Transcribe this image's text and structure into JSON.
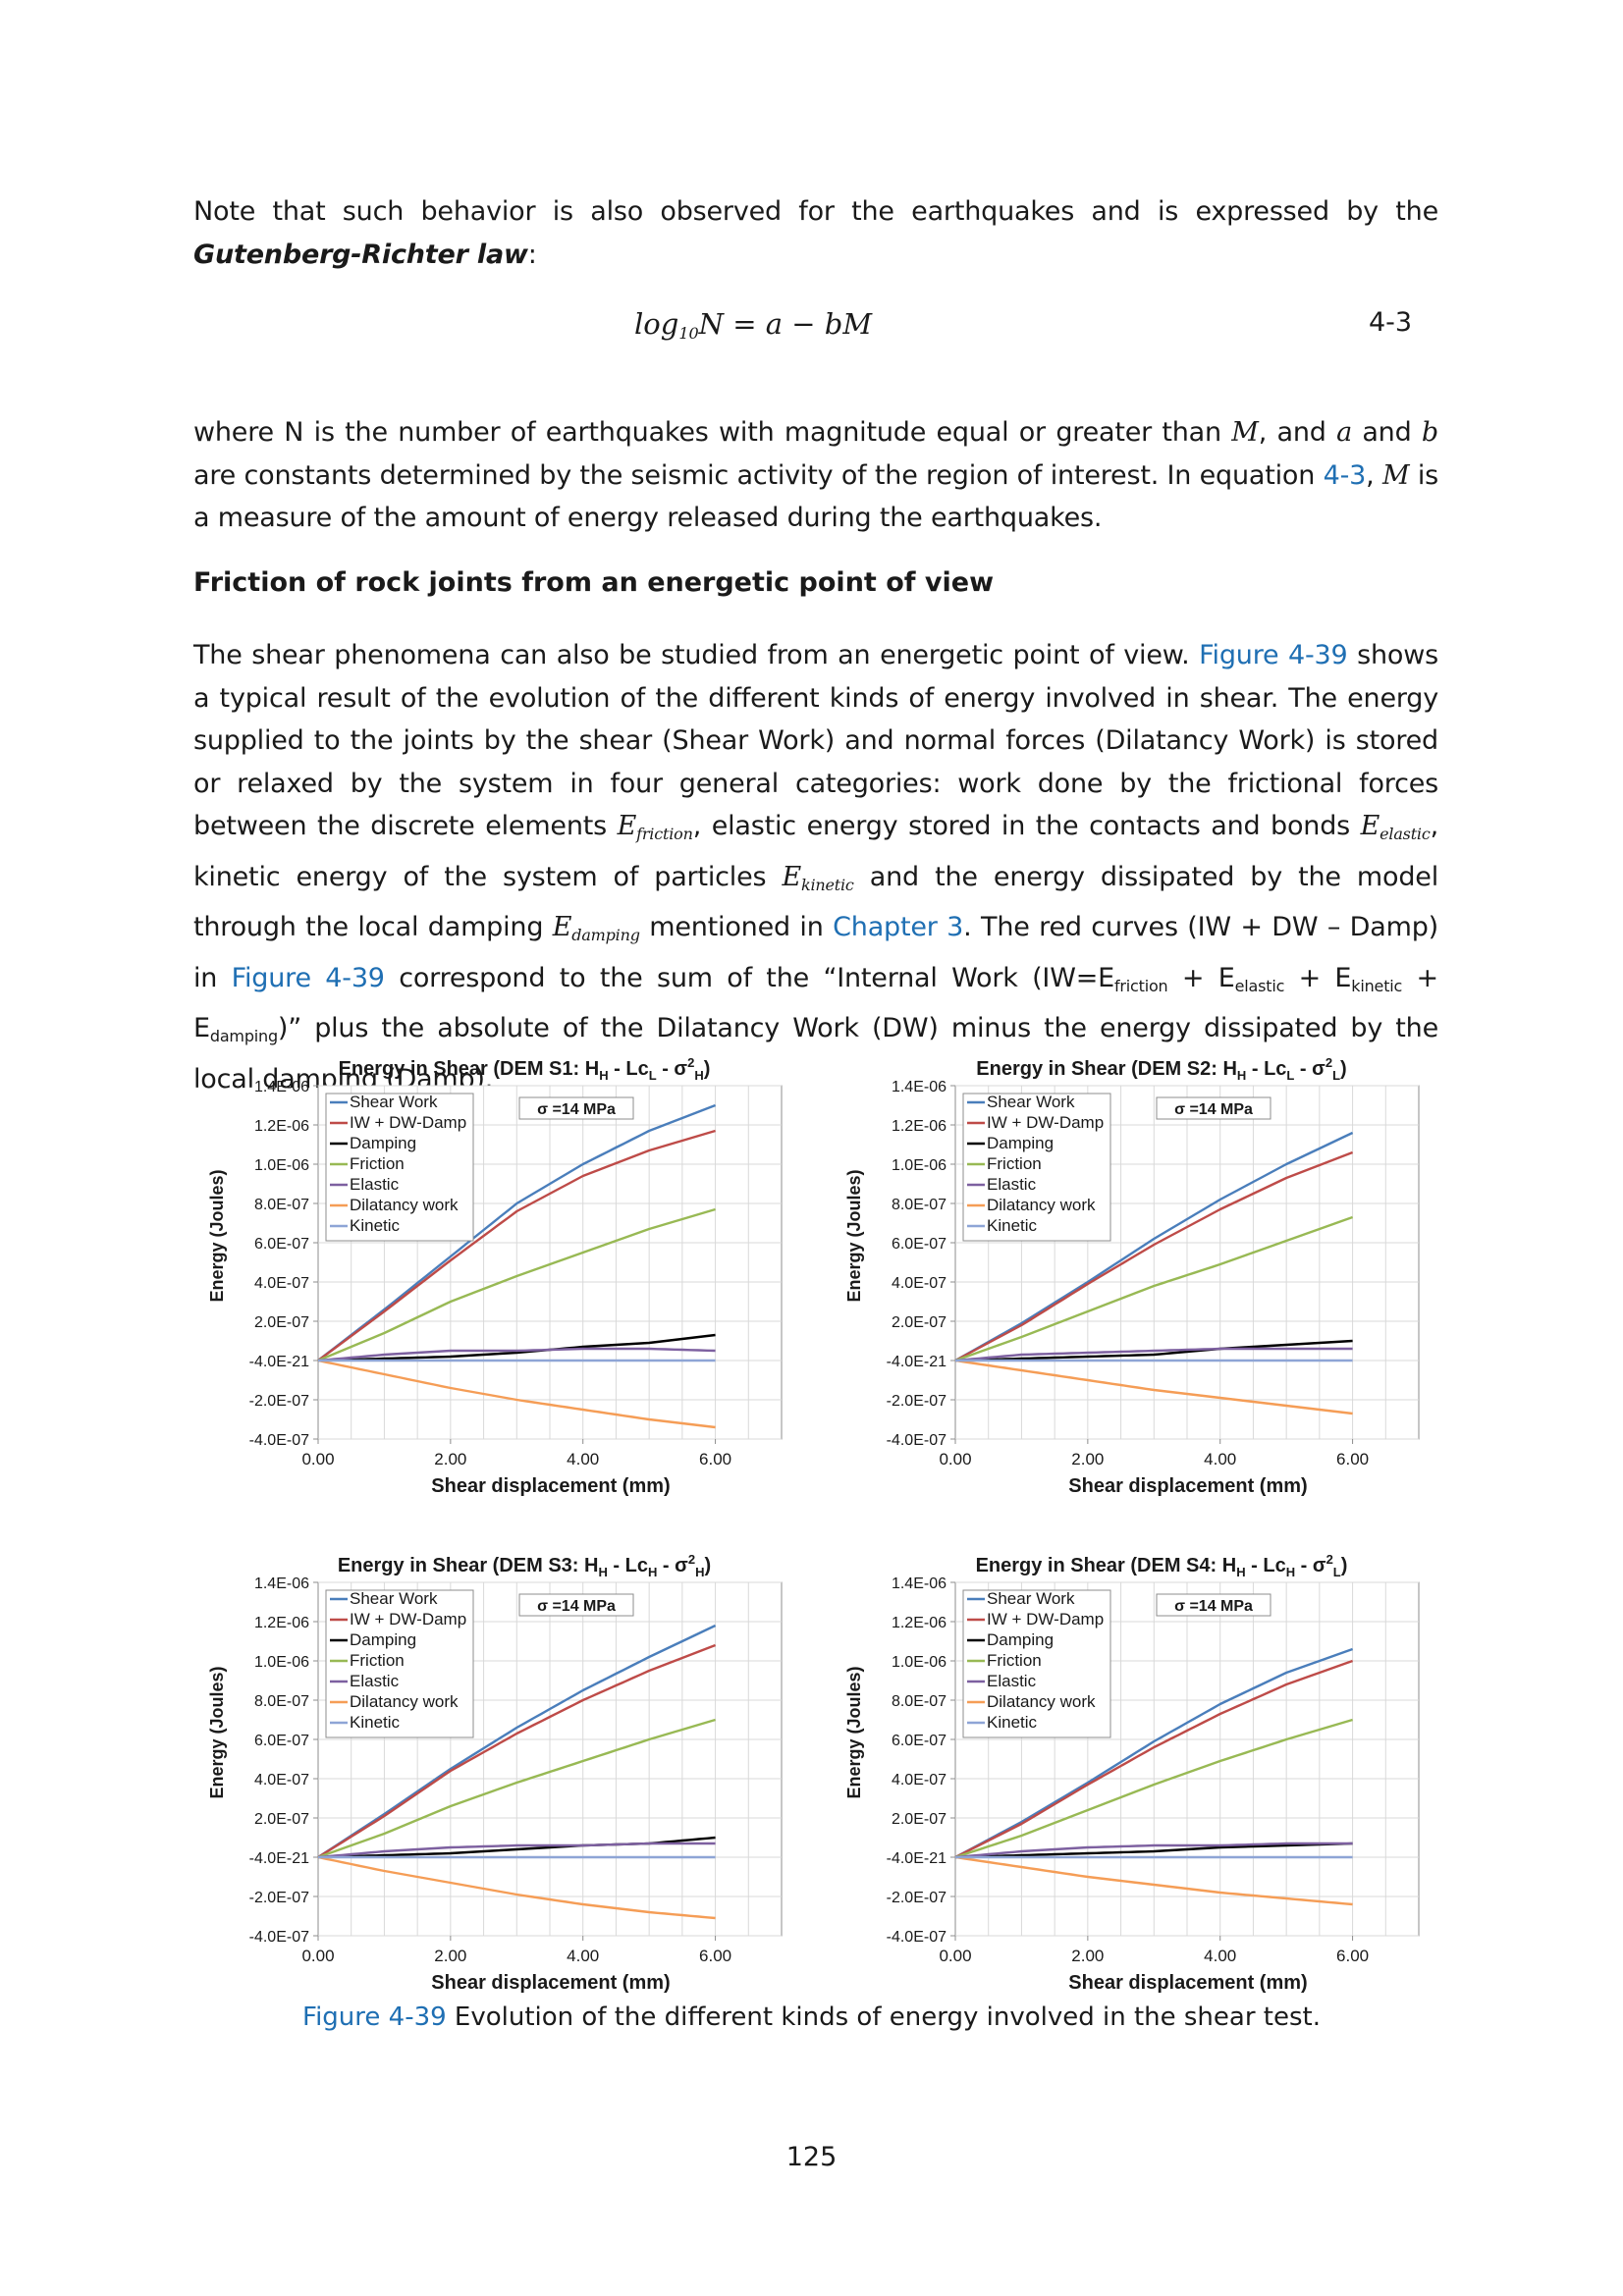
{
  "paragraphs": {
    "p1_a": "Note that such behavior is also observed for the earthquakes and is expressed by the ",
    "p1_bold": "Gutenberg-Richter law",
    "p1_b": ":",
    "p2_a": "where N is the number of earthquakes with magnitude equal or greater than ",
    "p2_M1": "M",
    "p2_b": ", and ",
    "p2_a_var": "a",
    "p2_c": " and ",
    "p2_b_var": "b",
    "p2_d": " are constants determined by the seismic activity of the region of interest. In equation ",
    "p2_ref": "4-3",
    "p2_e": ", ",
    "p2_M2": "M",
    "p2_f": " is a measure of the amount of energy released during the earthquakes.",
    "p3_a": "The shear phenomena can also be studied from an energetic point of view. ",
    "p3_ref1": "Figure 4-39",
    "p3_b": " shows a typical result of the evolution of the different kinds of energy involved in shear. The energy supplied to the joints by the shear (Shear Work) and normal forces (Dilatancy Work) is stored or relaxed by the system in four general categories: work done by the frictional forces between the discrete elements ",
    "p3_Efr": "friction",
    "p3_c": ", elastic energy stored in the contacts and bonds ",
    "p3_Eel": "elastic",
    "p3_d": ", kinetic energy of the system of particles ",
    "p3_Ekin": "kinetic",
    "p3_e": " and the energy dissipated by the model through the local damping ",
    "p3_Edamp": "damping",
    "p3_f": " mentioned in ",
    "p3_ref2": "Chapter 3",
    "p3_g": ". The red curves (IW + DW – Damp) in ",
    "p3_ref3": "Figure 4-39",
    "p3_h": " correspond to the sum of the “Internal Work (IW=E",
    "p3_s1": "friction",
    "p3_i": " + E",
    "p3_s2": "elastic",
    "p3_j": " + E",
    "p3_s3": "kinetic",
    "p3_k": " + E",
    "p3_s4": "damping",
    "p3_l": ")” plus the absolute of the Dilatancy Work (DW) minus the energy dissipated by the local damping (Damp)."
  },
  "equation": {
    "log": "log",
    "base": "10",
    "rest": "N = a − bM",
    "number": "4-3"
  },
  "heading": "Friction of rock joints from an energetic point of view",
  "caption": {
    "ref": "Figure 4-39",
    "text": " Evolution of the different kinds of energy involved in the shear test."
  },
  "page_number": "125",
  "colors": {
    "Shear Work": "#4a7ebb",
    "IW + DW-Damp": "#be4b48",
    "Damping": "#000000",
    "Friction": "#98b954",
    "Elastic": "#7d60a0",
    "Dilatancy work": "#f59d56",
    "Kinetic": "#8ea5d6"
  },
  "chart_data": [
    {
      "type": "line",
      "title": "Energy in Shear (DEM S1: H_H - Lc_L - σ²_H)",
      "title_parts": {
        "main": "Energy in Shear (DEM S1: H",
        "s1": "H",
        "m2": " - Lc",
        "s2": "L",
        "m3": " - σ",
        "sup": "2",
        "s3": "H",
        "end": ")"
      },
      "annotation": "σ =14 MPa",
      "xlabel": "Shear displacement (mm)",
      "ylabel": "Energy (Joules)",
      "xlim": [
        0,
        7
      ],
      "ylim": [
        -4e-07,
        1.4e-06
      ],
      "x_ticks": [
        "0.00",
        "2.00",
        "4.00",
        "6.00"
      ],
      "y_ticks": [
        "1.4E-06",
        "1.2E-06",
        "1.0E-06",
        "8.0E-07",
        "6.0E-07",
        "4.0E-07",
        "2.0E-07",
        "-4.0E-21",
        "-2.0E-07",
        "-4.0E-07"
      ],
      "legend": [
        "Shear Work",
        "IW + DW-Damp",
        "Damping",
        "Friction",
        "Elastic",
        "Dilatancy work",
        "Kinetic"
      ],
      "x": [
        0,
        1,
        2,
        3,
        4,
        5,
        6
      ],
      "series": [
        {
          "name": "Shear Work",
          "values": [
            0,
            2.6e-07,
            5.3e-07,
            8e-07,
            1e-06,
            1.17e-06,
            1.3e-06
          ]
        },
        {
          "name": "IW + DW-Damp",
          "values": [
            0,
            2.5e-07,
            5.1e-07,
            7.6e-07,
            9.4e-07,
            1.07e-06,
            1.17e-06
          ]
        },
        {
          "name": "Damping",
          "values": [
            0,
            1e-08,
            2e-08,
            4e-08,
            7e-08,
            9e-08,
            1.3e-07
          ]
        },
        {
          "name": "Friction",
          "values": [
            0,
            1.4e-07,
            3e-07,
            4.3e-07,
            5.5e-07,
            6.7e-07,
            7.7e-07
          ]
        },
        {
          "name": "Elastic",
          "values": [
            0,
            3e-08,
            5e-08,
            5e-08,
            6e-08,
            6e-08,
            5e-08
          ]
        },
        {
          "name": "Dilatancy work",
          "values": [
            0,
            -7e-08,
            -1.4e-07,
            -2e-07,
            -2.5e-07,
            -3e-07,
            -3.4e-07
          ]
        },
        {
          "name": "Kinetic",
          "values": [
            0,
            0,
            0,
            0,
            0,
            0,
            0
          ]
        }
      ]
    },
    {
      "type": "line",
      "title": "Energy in Shear (DEM S2: H_H - Lc_L - σ²_L)",
      "title_parts": {
        "main": "Energy in Shear (DEM S2: H",
        "s1": "H",
        "m2": " - Lc",
        "s2": "L",
        "m3": " - σ",
        "sup": "2",
        "s3": "L",
        "end": ")"
      },
      "annotation": "σ =14 MPa",
      "xlabel": "Shear displacement (mm)",
      "ylabel": "Energy (Joules)",
      "xlim": [
        0,
        7
      ],
      "ylim": [
        -4e-07,
        1.4e-06
      ],
      "x_ticks": [
        "0.00",
        "2.00",
        "4.00",
        "6.00"
      ],
      "y_ticks": [
        "1.4E-06",
        "1.2E-06",
        "1.0E-06",
        "8.0E-07",
        "6.0E-07",
        "4.0E-07",
        "2.0E-07",
        "-4.0E-21",
        "-2.0E-07",
        "-4.0E-07"
      ],
      "legend": [
        "Shear Work",
        "IW + DW-Damp",
        "Damping",
        "Friction",
        "Elastic",
        "Dilatancy work",
        "Kinetic"
      ],
      "x": [
        0,
        1,
        2,
        3,
        4,
        5,
        6
      ],
      "series": [
        {
          "name": "Shear Work",
          "values": [
            0,
            1.9e-07,
            4e-07,
            6.2e-07,
            8.2e-07,
            1e-06,
            1.16e-06
          ]
        },
        {
          "name": "IW + DW-Damp",
          "values": [
            0,
            1.8e-07,
            3.9e-07,
            5.9e-07,
            7.7e-07,
            9.3e-07,
            1.06e-06
          ]
        },
        {
          "name": "Damping",
          "values": [
            0,
            1e-08,
            2e-08,
            3e-08,
            6e-08,
            8e-08,
            1e-07
          ]
        },
        {
          "name": "Friction",
          "values": [
            0,
            1.2e-07,
            2.5e-07,
            3.8e-07,
            4.9e-07,
            6.1e-07,
            7.3e-07
          ]
        },
        {
          "name": "Elastic",
          "values": [
            0,
            3e-08,
            4e-08,
            5e-08,
            6e-08,
            6e-08,
            6e-08
          ]
        },
        {
          "name": "Dilatancy work",
          "values": [
            0,
            -5e-08,
            -1e-07,
            -1.5e-07,
            -1.9e-07,
            -2.3e-07,
            -2.7e-07
          ]
        },
        {
          "name": "Kinetic",
          "values": [
            0,
            0,
            0,
            0,
            0,
            0,
            0
          ]
        }
      ]
    },
    {
      "type": "line",
      "title": "Energy in Shear (DEM S3: H_H - Lc_H - σ²_H)",
      "title_parts": {
        "main": "Energy in Shear (DEM S3: H",
        "s1": "H",
        "m2": " - Lc",
        "s2": "H",
        "m3": " - σ",
        "sup": "2",
        "s3": "H",
        "end": ")"
      },
      "annotation": "σ =14 MPa",
      "xlabel": "Shear displacement (mm)",
      "ylabel": "Energy (Joules)",
      "xlim": [
        0,
        7
      ],
      "ylim": [
        -4e-07,
        1.4e-06
      ],
      "x_ticks": [
        "0.00",
        "2.00",
        "4.00",
        "6.00"
      ],
      "y_ticks": [
        "1.4E-06",
        "1.2E-06",
        "1.0E-06",
        "8.0E-07",
        "6.0E-07",
        "4.0E-07",
        "2.0E-07",
        "-4.0E-21",
        "-2.0E-07",
        "-4.0E-07"
      ],
      "legend": [
        "Shear Work",
        "IW + DW-Damp",
        "Damping",
        "Friction",
        "Elastic",
        "Dilatancy work",
        "Kinetic"
      ],
      "x": [
        0,
        1,
        2,
        3,
        4,
        5,
        6
      ],
      "series": [
        {
          "name": "Shear Work",
          "values": [
            0,
            2.2e-07,
            4.5e-07,
            6.6e-07,
            8.5e-07,
            1.02e-06,
            1.18e-06
          ]
        },
        {
          "name": "IW + DW-Damp",
          "values": [
            0,
            2.1e-07,
            4.4e-07,
            6.3e-07,
            8e-07,
            9.5e-07,
            1.08e-06
          ]
        },
        {
          "name": "Damping",
          "values": [
            0,
            1e-08,
            2e-08,
            4e-08,
            6e-08,
            7e-08,
            1e-07
          ]
        },
        {
          "name": "Friction",
          "values": [
            0,
            1.2e-07,
            2.6e-07,
            3.8e-07,
            4.9e-07,
            6e-07,
            7e-07
          ]
        },
        {
          "name": "Elastic",
          "values": [
            0,
            3e-08,
            5e-08,
            6e-08,
            6e-08,
            7e-08,
            7e-08
          ]
        },
        {
          "name": "Dilatancy work",
          "values": [
            0,
            -7e-08,
            -1.3e-07,
            -1.9e-07,
            -2.4e-07,
            -2.8e-07,
            -3.1e-07
          ]
        },
        {
          "name": "Kinetic",
          "values": [
            0,
            0,
            0,
            0,
            0,
            0,
            0
          ]
        }
      ]
    },
    {
      "type": "line",
      "title": "Energy in Shear (DEM S4: H_H - Lc_H - σ²_L)",
      "title_parts": {
        "main": "Energy in Shear (DEM S4: H",
        "s1": "H",
        "m2": " - Lc",
        "s2": "H",
        "m3": " - σ",
        "sup": "2",
        "s3": "L",
        "end": ")"
      },
      "annotation": "σ =14 MPa",
      "xlabel": "Shear displacement (mm)",
      "ylabel": "Energy (Joules)",
      "xlim": [
        0,
        7
      ],
      "ylim": [
        -4e-07,
        1.4e-06
      ],
      "x_ticks": [
        "0.00",
        "2.00",
        "4.00",
        "6.00"
      ],
      "y_ticks": [
        "1.4E-06",
        "1.2E-06",
        "1.0E-06",
        "8.0E-07",
        "6.0E-07",
        "4.0E-07",
        "2.0E-07",
        "-4.0E-21",
        "-2.0E-07",
        "-4.0E-07"
      ],
      "legend": [
        "Shear Work",
        "IW + DW-Damp",
        "Damping",
        "Friction",
        "Elastic",
        "Dilatancy work",
        "Kinetic"
      ],
      "x": [
        0,
        1,
        2,
        3,
        4,
        5,
        6
      ],
      "series": [
        {
          "name": "Shear Work",
          "values": [
            0,
            1.8e-07,
            3.8e-07,
            5.9e-07,
            7.8e-07,
            9.4e-07,
            1.06e-06
          ]
        },
        {
          "name": "IW + DW-Damp",
          "values": [
            0,
            1.7e-07,
            3.7e-07,
            5.6e-07,
            7.3e-07,
            8.8e-07,
            1e-06
          ]
        },
        {
          "name": "Damping",
          "values": [
            0,
            1e-08,
            2e-08,
            3e-08,
            5e-08,
            6e-08,
            7e-08
          ]
        },
        {
          "name": "Friction",
          "values": [
            0,
            1.1e-07,
            2.4e-07,
            3.7e-07,
            4.9e-07,
            6e-07,
            7e-07
          ]
        },
        {
          "name": "Elastic",
          "values": [
            0,
            3e-08,
            5e-08,
            6e-08,
            6e-08,
            7e-08,
            7e-08
          ]
        },
        {
          "name": "Dilatancy work",
          "values": [
            0,
            -5e-08,
            -1e-07,
            -1.4e-07,
            -1.8e-07,
            -2.1e-07,
            -2.4e-07
          ]
        },
        {
          "name": "Kinetic",
          "values": [
            0,
            0,
            0,
            0,
            0,
            0,
            0
          ]
        }
      ]
    }
  ]
}
